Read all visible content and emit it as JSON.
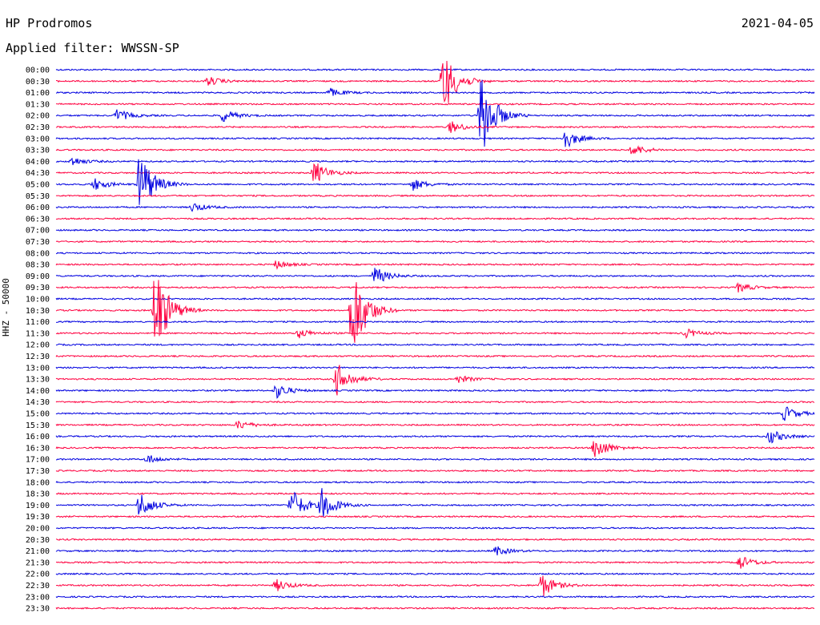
{
  "header": {
    "station": "HP Prodromos",
    "date": "2021-04-05",
    "filter_label": "Applied filter: WWSSN-SP",
    "channel_label": "HHZ - 50000"
  },
  "colors": {
    "blue": "#0000e0",
    "red": "#ff0040"
  },
  "chart_data": {
    "type": "line",
    "title": "HP Prodromos",
    "subtitle": "Applied filter: WWSSN-SP",
    "ylabel": "HHZ - 50000",
    "grid": false,
    "times": [
      "00:00",
      "00:30",
      "01:00",
      "01:30",
      "02:00",
      "02:30",
      "03:00",
      "03:30",
      "04:00",
      "04:30",
      "05:00",
      "05:30",
      "06:00",
      "06:30",
      "07:00",
      "07:30",
      "08:00",
      "08:30",
      "09:00",
      "09:30",
      "10:00",
      "10:30",
      "11:00",
      "11:30",
      "12:00",
      "12:30",
      "13:00",
      "13:30",
      "14:00",
      "14:30",
      "15:00",
      "15:30",
      "16:00",
      "16:30",
      "17:00",
      "17:30",
      "18:00",
      "18:30",
      "19:00",
      "19:30",
      "20:00",
      "20:30",
      "21:00",
      "21:30",
      "22:00",
      "22:30",
      "23:00",
      "23:30"
    ],
    "trace_colors": [
      "blue",
      "red"
    ],
    "events": [
      {
        "trace": "00:30",
        "pos": 0.51,
        "amp": 45
      },
      {
        "trace": "00:30",
        "pos": 0.2,
        "amp": 6
      },
      {
        "trace": "01:00",
        "pos": 0.36,
        "amp": 6
      },
      {
        "trace": "02:00",
        "pos": 0.56,
        "amp": 60
      },
      {
        "trace": "02:00",
        "pos": 0.08,
        "amp": 8
      },
      {
        "trace": "02:00",
        "pos": 0.22,
        "amp": 8
      },
      {
        "trace": "02:30",
        "pos": 0.52,
        "amp": 8
      },
      {
        "trace": "03:00",
        "pos": 0.67,
        "amp": 14
      },
      {
        "trace": "03:30",
        "pos": 0.76,
        "amp": 8
      },
      {
        "trace": "04:00",
        "pos": 0.02,
        "amp": 6
      },
      {
        "trace": "04:30",
        "pos": 0.34,
        "amp": 16
      },
      {
        "trace": "05:00",
        "pos": 0.11,
        "amp": 45
      },
      {
        "trace": "05:00",
        "pos": 0.05,
        "amp": 8
      },
      {
        "trace": "05:00",
        "pos": 0.47,
        "amp": 8
      },
      {
        "trace": "06:00",
        "pos": 0.18,
        "amp": 6
      },
      {
        "trace": "08:30",
        "pos": 0.29,
        "amp": 5
      },
      {
        "trace": "09:00",
        "pos": 0.42,
        "amp": 12
      },
      {
        "trace": "09:30",
        "pos": 0.9,
        "amp": 6
      },
      {
        "trace": "10:30",
        "pos": 0.13,
        "amp": 65
      },
      {
        "trace": "10:30",
        "pos": 0.39,
        "amp": 70
      },
      {
        "trace": "11:30",
        "pos": 0.32,
        "amp": 6
      },
      {
        "trace": "11:30",
        "pos": 0.83,
        "amp": 6
      },
      {
        "trace": "13:30",
        "pos": 0.37,
        "amp": 22
      },
      {
        "trace": "13:30",
        "pos": 0.53,
        "amp": 5
      },
      {
        "trace": "14:00",
        "pos": 0.29,
        "amp": 10
      },
      {
        "trace": "15:00",
        "pos": 0.96,
        "amp": 10
      },
      {
        "trace": "15:30",
        "pos": 0.24,
        "amp": 6
      },
      {
        "trace": "16:00",
        "pos": 0.94,
        "amp": 10
      },
      {
        "trace": "16:30",
        "pos": 0.71,
        "amp": 16
      },
      {
        "trace": "17:00",
        "pos": 0.12,
        "amp": 6
      },
      {
        "trace": "19:00",
        "pos": 0.11,
        "amp": 18
      },
      {
        "trace": "19:00",
        "pos": 0.31,
        "amp": 22
      },
      {
        "trace": "19:00",
        "pos": 0.35,
        "amp": 20
      },
      {
        "trace": "21:00",
        "pos": 0.58,
        "amp": 6
      },
      {
        "trace": "21:30",
        "pos": 0.9,
        "amp": 10
      },
      {
        "trace": "22:30",
        "pos": 0.29,
        "amp": 8
      },
      {
        "trace": "22:30",
        "pos": 0.64,
        "amp": 16
      }
    ]
  }
}
